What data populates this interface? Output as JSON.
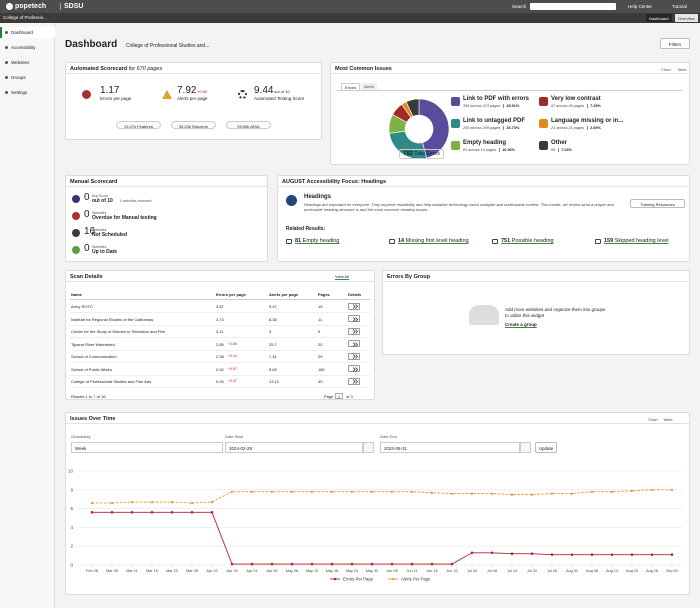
{
  "topbar": {
    "brand": "popetech",
    "org": "SDSU",
    "search_label": "Search",
    "help": "Help Center",
    "tutorial": "Tutorial"
  },
  "subnav": {
    "scope_selector": "College of Professio...",
    "tabs": [
      "Dashboard",
      "Overview"
    ]
  },
  "sidebar": {
    "items": [
      "Dashboard",
      "Accessibility",
      "Websites",
      "Groups",
      "Settings"
    ]
  },
  "header": {
    "title": "Dashboard",
    "scope": "College of Professional Studies and...",
    "filters": "Filters"
  },
  "automated_scorecard": {
    "title": "Automated Scorecard",
    "subtitle": "for 670 pages",
    "errors": {
      "value": "1.17",
      "label": "Errors per page"
    },
    "alerts": {
      "value": "7.92",
      "change": "+0.85",
      "label": "Alerts per page"
    },
    "score": {
      "value": "9.44",
      "suffix": "out of 10",
      "label": "Automated Testing Score"
    },
    "pills": [
      "13.07k Features",
      "33.23k Structure",
      "53.96k ARIA"
    ]
  },
  "most_common_issues": {
    "title": "Most Common Issues",
    "views": [
      "Chart",
      "Table"
    ],
    "tabs": [
      "Errors",
      "Alerts"
    ],
    "total_value": "782",
    "total_label": "Total Errors",
    "issues": [
      {
        "name": "Link to PDF with errors",
        "detail": "359 across 213 pages",
        "share": 45.91,
        "share_label": "45.91%",
        "color": "#5b4b9c"
      },
      {
        "name": "Link to untagged PDF",
        "detail": "209 across 209 pages",
        "share": 26.73,
        "share_label": "26.73%",
        "color": "#2f8a8a"
      },
      {
        "name": "Empty heading",
        "detail": "81 across 14 pages",
        "share": 10.36,
        "share_label": "10.36%",
        "color": "#7cb342"
      },
      {
        "name": "Very low contrast",
        "detail": "57 across 49 pages",
        "share": 7.29,
        "share_label": "7.29%",
        "color": "#9e2b25"
      },
      {
        "name": "Language missing or in...",
        "detail": "21 across 21 pages",
        "share": 2.69,
        "share_label": "2.69%",
        "color": "#e08a1e"
      },
      {
        "name": "Other",
        "detail": "55",
        "share": 7.03,
        "share_label": "7.03%",
        "color": "#3a3a3a"
      }
    ]
  },
  "manual_scorecard": {
    "title": "Manual Scorecard",
    "items": [
      {
        "caption": "Avg Score",
        "value": "0",
        "label": "out of 10",
        "note": "0 websites reviewed",
        "color": "#3d2f7a"
      },
      {
        "caption": "Websites",
        "value": "0",
        "label": "Overdue for Manual testing",
        "color": "#a8322d"
      },
      {
        "caption": "Websites",
        "value": "16",
        "label": "Not Scheduled",
        "color": "#3a3a3a"
      },
      {
        "caption": "Websites",
        "value": "0",
        "label": "Up to Date",
        "color": "#5f9e3a"
      }
    ]
  },
  "focus": {
    "title": "AUGUST Accessibility Focus: Headings",
    "heading": "Headings",
    "description": "Headings are important for everyone. They improve readability and help assistive technology users navigate and understand content. This month, we review what a proper and accessible heading structure is and the most common heading issues.",
    "button": "Training Resources",
    "related_title": "Related Results:",
    "related": [
      {
        "count": "81",
        "label": "Empty heading"
      },
      {
        "count": "14",
        "label": "Missing first level heading"
      },
      {
        "count": "751",
        "label": "Possible heading"
      },
      {
        "count": "159",
        "label": "Skipped heading level"
      }
    ]
  },
  "scan_details": {
    "title": "Scan Details",
    "view_all": "View All",
    "columns": [
      "Name",
      "Errors per page",
      "Alerts per page",
      "Pages",
      "Details"
    ],
    "rows": [
      {
        "name": "Army ROTC",
        "errors": "3.87",
        "alerts": "9.47",
        "pages": "15"
      },
      {
        "name": "Institute for Regional Studies of the Californias",
        "errors": "3.73",
        "alerts": "8.36",
        "pages": "11"
      },
      {
        "name": "Center for the Study of Women in Television and Film",
        "errors": "3.11",
        "alerts": "3",
        "pages": "9"
      },
      {
        "name": "Tijuana River Watershed",
        "errors": "2.85",
        "errors_change": "+2.85",
        "alerts": "25.7",
        "pages": "20"
      },
      {
        "name": "School of Communication",
        "errors": "2.38",
        "errors_change": "+0.14",
        "alerts": "7.41",
        "pages": "29"
      },
      {
        "name": "School of Public Affairs",
        "errors": "2.02",
        "errors_change": "+0.57",
        "alerts": "5.63",
        "pages": "180"
      },
      {
        "name": "College of Professional Studies and Fine Arts",
        "errors": "0.94",
        "errors_change": "+0.47",
        "alerts": "13.12",
        "pages": "40"
      }
    ],
    "footer": "Results 1 to 7 of 16.",
    "page_label": "Page",
    "page": "1",
    "page_of": "of 3"
  },
  "errors_by_group": {
    "title": "Errors By Group",
    "message": "Add more websites and organize them into groups to utilize this widget",
    "link": "Create a group"
  },
  "issues_over_time": {
    "title": "Issues Over Time",
    "views": [
      "Chart",
      "Table"
    ],
    "granularity_label": "Granularity",
    "granularity": "Week",
    "start_label": "Date Start",
    "start": "2024-02-28",
    "end_label": "Date End",
    "end": "2024-08-31",
    "update": "Update",
    "chart": {
      "type": "line",
      "x": [
        "Feb 28",
        "Mar 05",
        "Mar 11",
        "Mar 16",
        "Mar 22",
        "Mar 28",
        "Apr 02",
        "Apr 18",
        "Apr 24",
        "Apr 30",
        "May 06",
        "May 12",
        "May 18",
        "May 24",
        "May 30",
        "Jun 05",
        "Jun 11",
        "Jun 16",
        "Jun 22",
        "Jul 02",
        "Jul 08",
        "Jul 14",
        "Jul 20",
        "Jul 26",
        "Aug 01",
        "Aug 08",
        "Aug 14",
        "Aug 20",
        "Aug 26",
        "Sep 02"
      ],
      "series": [
        {
          "name": "Errors Per Page",
          "color": "#b0272d",
          "values": [
            5.6,
            5.6,
            5.6,
            5.6,
            5.6,
            5.6,
            5.6,
            0.1,
            0.1,
            0.1,
            0.1,
            0.1,
            0.1,
            0.1,
            0.1,
            0.1,
            0.1,
            0.1,
            0.1,
            1.3,
            1.3,
            1.2,
            1.2,
            1.1,
            1.1,
            1.1,
            1.1,
            1.1,
            1.1,
            1.1
          ]
        },
        {
          "name": "Alerts Per Page",
          "color": "#e8962e",
          "values": [
            6.6,
            6.6,
            6.7,
            6.7,
            6.7,
            6.6,
            6.7,
            7.8,
            7.8,
            7.8,
            7.8,
            7.8,
            7.8,
            7.8,
            7.8,
            7.8,
            7.8,
            7.7,
            7.6,
            7.6,
            7.6,
            7.5,
            7.5,
            7.6,
            7.6,
            7.8,
            7.8,
            7.9,
            8.0,
            8.0
          ]
        }
      ],
      "ylim": [
        0,
        10
      ],
      "yticks": [
        0,
        2,
        4,
        6,
        8,
        10
      ],
      "grid": true
    }
  }
}
